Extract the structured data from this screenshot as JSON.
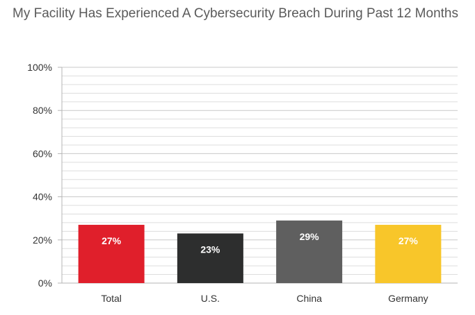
{
  "chart_data": {
    "type": "bar",
    "title": "My Facility Has Experienced A Cybersecurity Breach During Past 12 Months",
    "categories": [
      "Total",
      "U.S.",
      "China",
      "Germany"
    ],
    "values": [
      27,
      23,
      29,
      27
    ],
    "data_labels": [
      "27%",
      "23%",
      "29%",
      "27%"
    ],
    "colors": [
      "#e01f2b",
      "#2d2e2e",
      "#5f5f5f",
      "#f8c62a"
    ],
    "ylim": [
      0,
      100
    ],
    "y_ticks": [
      0,
      20,
      40,
      60,
      80,
      100
    ],
    "y_tick_labels": [
      "0%",
      "20%",
      "40%",
      "60%",
      "80%",
      "100%"
    ],
    "minor_grid_step": 4,
    "grid": true,
    "legend": "none"
  }
}
